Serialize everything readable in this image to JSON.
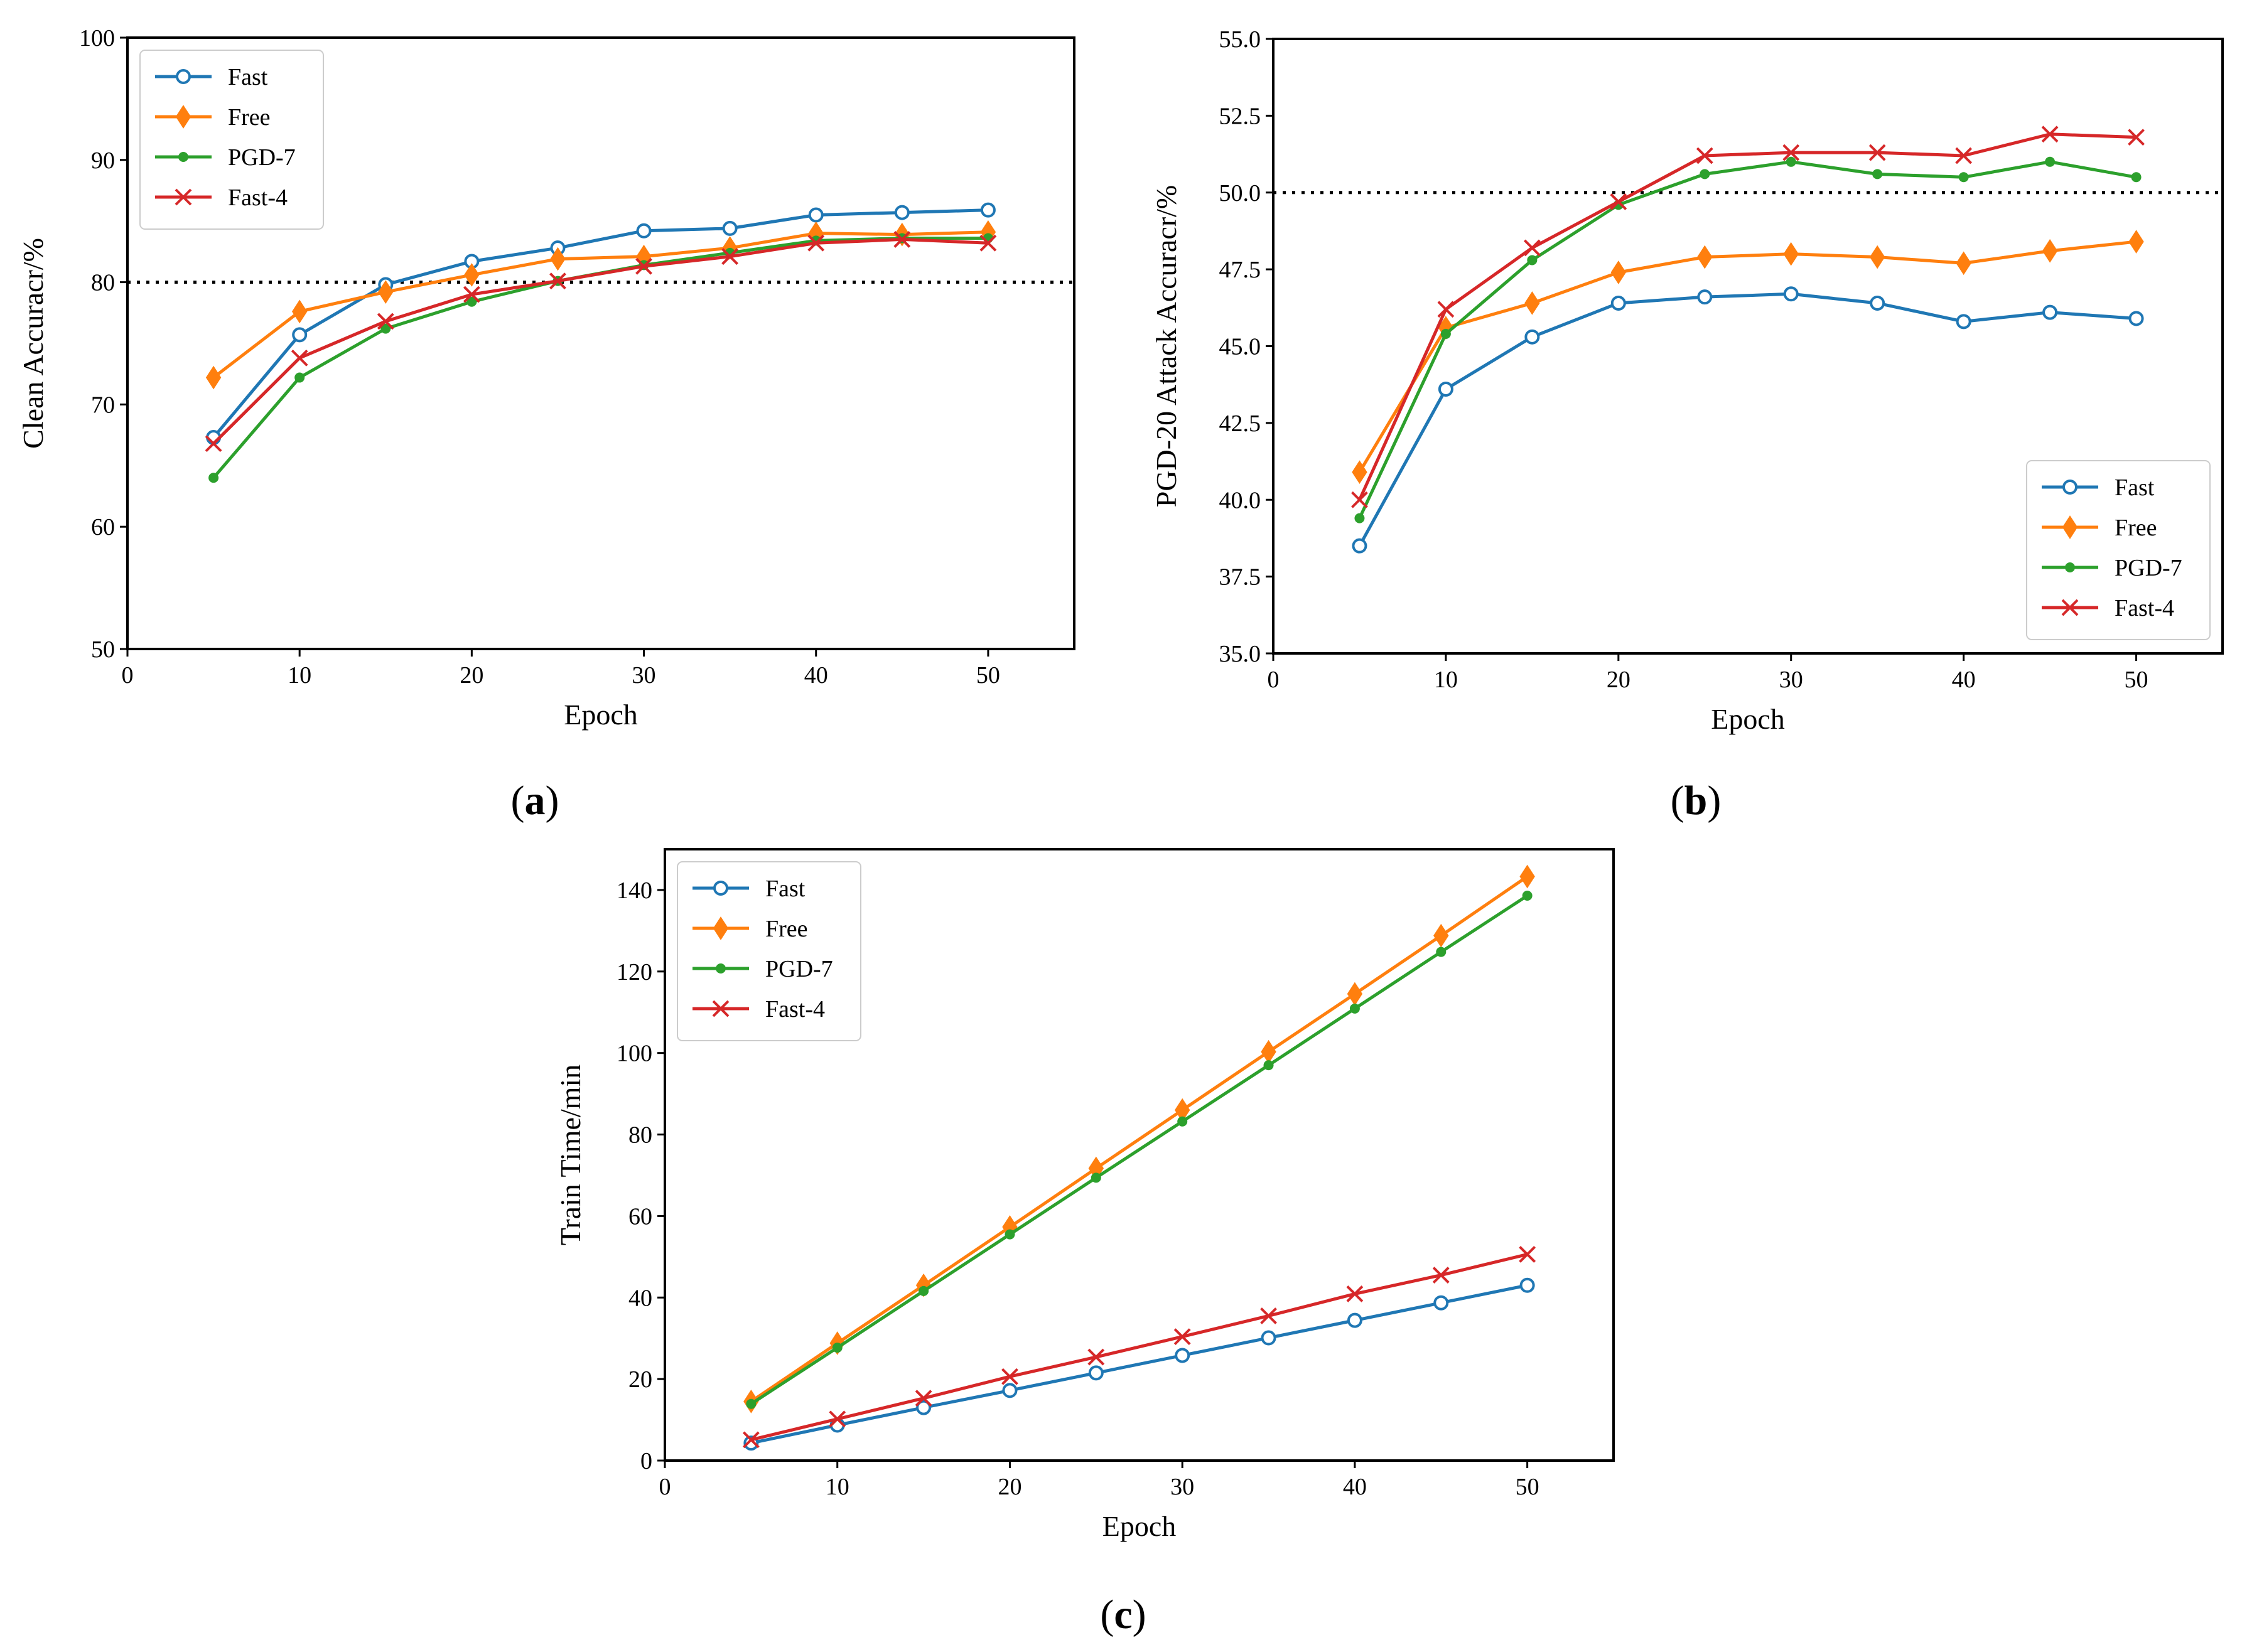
{
  "colors": {
    "Fast": "#1f77b4",
    "Free": "#ff7f0e",
    "PGD-7": "#2ca02c",
    "Fast-4": "#d62728",
    "reference": "#000000"
  },
  "markers": {
    "Fast": "circle-open",
    "Free": "thin-diamond",
    "PGD-7": "dot",
    "Fast-4": "x"
  },
  "chart_data": [
    {
      "type": "line",
      "panel_label": "(a)",
      "panel_letter": "a",
      "xlabel": "Epoch",
      "ylabel": "Clean Accuracr/%",
      "xlim": [
        0,
        55
      ],
      "ylim": [
        50,
        100
      ],
      "xticks": [
        0,
        10,
        20,
        30,
        40,
        50
      ],
      "xtick_labels": [
        "0",
        "10",
        "20",
        "30",
        "40",
        "50"
      ],
      "yticks": [
        50,
        60,
        70,
        80,
        90,
        100
      ],
      "ytick_labels": [
        "50",
        "60",
        "70",
        "80",
        "90",
        "100"
      ],
      "reference_line": 80,
      "legend_position": "top-left",
      "x": [
        5,
        10,
        15,
        20,
        25,
        30,
        35,
        40,
        45,
        50
      ],
      "series": [
        {
          "name": "Fast",
          "values": [
            67.3,
            75.7,
            79.8,
            81.7,
            82.8,
            84.2,
            84.4,
            85.5,
            85.7,
            85.9
          ]
        },
        {
          "name": "Free",
          "values": [
            72.2,
            77.6,
            79.2,
            80.6,
            81.9,
            82.1,
            82.8,
            84.0,
            83.9,
            84.1
          ]
        },
        {
          "name": "PGD-7",
          "values": [
            64.0,
            72.2,
            76.2,
            78.4,
            80.1,
            81.4,
            82.4,
            83.4,
            83.6,
            83.6
          ]
        },
        {
          "name": "Fast-4",
          "values": [
            66.8,
            73.8,
            76.8,
            79.0,
            80.1,
            81.3,
            82.1,
            83.2,
            83.5,
            83.2
          ]
        }
      ]
    },
    {
      "type": "line",
      "panel_label": "(b)",
      "panel_letter": "b",
      "xlabel": "Epoch",
      "ylabel": "PGD-20 Attack Accuracr/%",
      "xlim": [
        0,
        55
      ],
      "ylim": [
        35,
        55
      ],
      "xticks": [
        0,
        10,
        20,
        30,
        40,
        50
      ],
      "xtick_labels": [
        "0",
        "10",
        "20",
        "30",
        "40",
        "50"
      ],
      "yticks": [
        35,
        37.5,
        40,
        42.5,
        45,
        47.5,
        50,
        52.5,
        55
      ],
      "ytick_labels": [
        "35.0",
        "37.5",
        "40.0",
        "42.5",
        "45.0",
        "47.5",
        "50.0",
        "52.5",
        "55.0"
      ],
      "reference_line": 50,
      "legend_position": "bottom-right",
      "x": [
        5,
        10,
        15,
        20,
        25,
        30,
        35,
        40,
        45,
        50
      ],
      "series": [
        {
          "name": "Fast",
          "values": [
            38.5,
            43.6,
            45.3,
            46.4,
            46.6,
            46.7,
            46.4,
            45.8,
            46.1,
            45.9
          ]
        },
        {
          "name": "Free",
          "values": [
            40.9,
            45.6,
            46.4,
            47.4,
            47.9,
            48.0,
            47.9,
            47.7,
            48.1,
            48.4
          ]
        },
        {
          "name": "PGD-7",
          "values": [
            39.4,
            45.4,
            47.8,
            49.6,
            50.6,
            51.0,
            50.6,
            50.5,
            51.0,
            50.5
          ]
        },
        {
          "name": "Fast-4",
          "values": [
            40.0,
            46.2,
            48.2,
            49.7,
            51.2,
            51.3,
            51.3,
            51.2,
            51.9,
            51.8
          ]
        }
      ]
    },
    {
      "type": "line",
      "panel_label": "(c)",
      "panel_letter": "c",
      "xlabel": "Epoch",
      "ylabel": "Train Time/min",
      "xlim": [
        0,
        55
      ],
      "ylim": [
        0,
        150
      ],
      "xticks": [
        0,
        10,
        20,
        30,
        40,
        50
      ],
      "xtick_labels": [
        "0",
        "10",
        "20",
        "30",
        "40",
        "50"
      ],
      "yticks": [
        0,
        20,
        40,
        60,
        80,
        100,
        120,
        140
      ],
      "ytick_labels": [
        "0",
        "20",
        "40",
        "60",
        "80",
        "100",
        "120",
        "140"
      ],
      "reference_line": null,
      "legend_position": "top-left",
      "x": [
        5,
        10,
        15,
        20,
        25,
        30,
        35,
        40,
        45,
        50
      ],
      "series": [
        {
          "name": "Fast",
          "values": [
            4.3,
            8.7,
            13.0,
            17.2,
            21.5,
            25.8,
            30.1,
            34.4,
            38.7,
            43.0
          ]
        },
        {
          "name": "Free",
          "values": [
            14.5,
            28.8,
            43.0,
            57.3,
            71.7,
            86.0,
            100.3,
            114.5,
            128.8,
            143.3
          ]
        },
        {
          "name": "PGD-7",
          "values": [
            13.9,
            27.7,
            41.6,
            55.5,
            69.4,
            83.2,
            97.0,
            110.9,
            124.8,
            138.6
          ]
        },
        {
          "name": "Fast-4",
          "values": [
            5.1,
            10.2,
            15.3,
            20.6,
            25.4,
            30.4,
            35.5,
            40.9,
            45.5,
            50.6
          ]
        }
      ]
    }
  ]
}
